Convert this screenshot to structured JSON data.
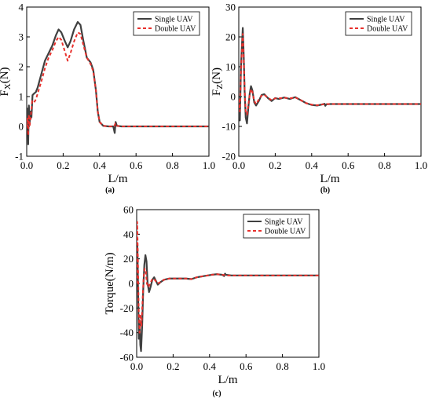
{
  "chart_data": [
    {
      "id": "a",
      "type": "line",
      "panel_label": "(a)",
      "ylabel_main": "F",
      "ylabel_sub": "X",
      "ylabel_unit": "(N)",
      "xlabel": "L/m",
      "xlim": [
        0,
        1.0
      ],
      "ylim": [
        -1,
        4
      ],
      "xticks": [
        0.0,
        0.2,
        0.4,
        0.6,
        0.8,
        1.0
      ],
      "xtick_labels": [
        "0.0",
        "0.2",
        "0.4",
        "0.6",
        "0.8",
        "1.0"
      ],
      "yticks": [
        -1,
        0,
        1,
        2,
        3,
        4
      ],
      "ytick_labels": [
        "-1",
        "0",
        "1",
        "2",
        "3",
        "4"
      ],
      "legend_position": "top-right",
      "series": [
        {
          "name": "Single UAV",
          "color": "#404040",
          "style": "solid",
          "points": [
            [
              0,
              0
            ],
            [
              0.004,
              0.6
            ],
            [
              0.008,
              -0.6
            ],
            [
              0.012,
              0.7
            ],
            [
              0.016,
              0.1
            ],
            [
              0.02,
              0.5
            ],
            [
              0.026,
              0.3
            ],
            [
              0.032,
              1.05
            ],
            [
              0.04,
              1.1
            ],
            [
              0.05,
              1.15
            ],
            [
              0.06,
              1.3
            ],
            [
              0.08,
              1.75
            ],
            [
              0.1,
              2.2
            ],
            [
              0.12,
              2.45
            ],
            [
              0.14,
              2.7
            ],
            [
              0.16,
              3.05
            ],
            [
              0.175,
              3.25
            ],
            [
              0.19,
              3.15
            ],
            [
              0.21,
              2.85
            ],
            [
              0.225,
              2.65
            ],
            [
              0.24,
              2.85
            ],
            [
              0.26,
              3.25
            ],
            [
              0.28,
              3.5
            ],
            [
              0.295,
              3.4
            ],
            [
              0.31,
              2.9
            ],
            [
              0.33,
              2.3
            ],
            [
              0.35,
              2.15
            ],
            [
              0.365,
              1.9
            ],
            [
              0.38,
              1.2
            ],
            [
              0.39,
              0.5
            ],
            [
              0.4,
              0.15
            ],
            [
              0.42,
              0.02
            ],
            [
              0.45,
              0.0
            ],
            [
              0.475,
              0.0
            ],
            [
              0.483,
              -0.22
            ],
            [
              0.488,
              0.15
            ],
            [
              0.495,
              0.02
            ],
            [
              0.52,
              0.0
            ],
            [
              0.6,
              0.0
            ],
            [
              1.0,
              0.0
            ]
          ]
        },
        {
          "name": "Double UAV",
          "color": "#e8302c",
          "style": "dashed",
          "points": [
            [
              0,
              0
            ],
            [
              0.004,
              0.3
            ],
            [
              0.008,
              -0.3
            ],
            [
              0.012,
              0.4
            ],
            [
              0.016,
              0.0
            ],
            [
              0.022,
              0.3
            ],
            [
              0.03,
              0.85
            ],
            [
              0.04,
              0.8
            ],
            [
              0.05,
              0.9
            ],
            [
              0.06,
              1.1
            ],
            [
              0.08,
              1.5
            ],
            [
              0.1,
              1.95
            ],
            [
              0.12,
              2.3
            ],
            [
              0.14,
              2.55
            ],
            [
              0.16,
              2.85
            ],
            [
              0.175,
              3.0
            ],
            [
              0.19,
              2.9
            ],
            [
              0.21,
              2.5
            ],
            [
              0.225,
              2.2
            ],
            [
              0.24,
              2.45
            ],
            [
              0.26,
              2.85
            ],
            [
              0.28,
              3.15
            ],
            [
              0.295,
              3.1
            ],
            [
              0.31,
              2.75
            ],
            [
              0.33,
              2.3
            ],
            [
              0.35,
              2.1
            ],
            [
              0.365,
              1.85
            ],
            [
              0.38,
              1.2
            ],
            [
              0.39,
              0.5
            ],
            [
              0.4,
              0.15
            ],
            [
              0.42,
              0.02
            ],
            [
              0.45,
              0.0
            ],
            [
              0.48,
              0.0
            ],
            [
              0.487,
              0.1
            ],
            [
              0.495,
              0.02
            ],
            [
              0.52,
              0.0
            ],
            [
              0.6,
              0.0
            ],
            [
              1.0,
              0.0
            ]
          ]
        }
      ]
    },
    {
      "id": "b",
      "type": "line",
      "panel_label": "(b)",
      "ylabel_main": "F",
      "ylabel_sub": "Z",
      "ylabel_unit": "(N)",
      "xlabel": "L/m",
      "xlim": [
        0,
        1.0
      ],
      "ylim": [
        -20,
        30
      ],
      "xticks": [
        0.0,
        0.2,
        0.4,
        0.6,
        0.8,
        1.0
      ],
      "xtick_labels": [
        "0.0",
        "0.2",
        "0.4",
        "0.6",
        "0.8",
        "1.0"
      ],
      "yticks": [
        -20,
        -10,
        0,
        10,
        20,
        30
      ],
      "ytick_labels": [
        "-20",
        "-10",
        "0",
        "10",
        "20",
        "30"
      ],
      "legend_position": "top-right",
      "series": [
        {
          "name": "Single UAV",
          "color": "#404040",
          "style": "solid",
          "points": [
            [
              0,
              -2
            ],
            [
              0.006,
              -8
            ],
            [
              0.012,
              10
            ],
            [
              0.018,
              18
            ],
            [
              0.022,
              23
            ],
            [
              0.027,
              14
            ],
            [
              0.032,
              2
            ],
            [
              0.038,
              -7
            ],
            [
              0.045,
              -9
            ],
            [
              0.052,
              -4
            ],
            [
              0.06,
              1
            ],
            [
              0.067,
              3.5
            ],
            [
              0.075,
              2
            ],
            [
              0.085,
              -2
            ],
            [
              0.095,
              -3
            ],
            [
              0.11,
              -1.5
            ],
            [
              0.125,
              0.5
            ],
            [
              0.14,
              0.8
            ],
            [
              0.16,
              -0.5
            ],
            [
              0.18,
              -1.5
            ],
            [
              0.2,
              -0.5
            ],
            [
              0.22,
              -0.8
            ],
            [
              0.25,
              -0.3
            ],
            [
              0.28,
              -0.8
            ],
            [
              0.31,
              -0.2
            ],
            [
              0.34,
              -1.2
            ],
            [
              0.37,
              -2.2
            ],
            [
              0.4,
              -2.8
            ],
            [
              0.43,
              -3.0
            ],
            [
              0.46,
              -2.6
            ],
            [
              0.47,
              -2.4
            ],
            [
              0.475,
              -3.1
            ],
            [
              0.48,
              -2.6
            ],
            [
              0.5,
              -2.5
            ],
            [
              0.6,
              -2.5
            ],
            [
              1.0,
              -2.5
            ]
          ]
        },
        {
          "name": "Double UAV",
          "color": "#e8302c",
          "style": "dashed",
          "points": [
            [
              0,
              -1
            ],
            [
              0.006,
              -5
            ],
            [
              0.012,
              8
            ],
            [
              0.018,
              17
            ],
            [
              0.022,
              21
            ],
            [
              0.027,
              13
            ],
            [
              0.032,
              3
            ],
            [
              0.038,
              -5
            ],
            [
              0.045,
              -6
            ],
            [
              0.052,
              -3
            ],
            [
              0.06,
              0.5
            ],
            [
              0.067,
              2.5
            ],
            [
              0.075,
              1.5
            ],
            [
              0.085,
              -1.5
            ],
            [
              0.095,
              -2.5
            ],
            [
              0.11,
              -1.0
            ],
            [
              0.125,
              0.3
            ],
            [
              0.14,
              0.6
            ],
            [
              0.16,
              -0.4
            ],
            [
              0.18,
              -1.2
            ],
            [
              0.2,
              -0.6
            ],
            [
              0.22,
              -0.6
            ],
            [
              0.25,
              -0.4
            ],
            [
              0.28,
              -0.6
            ],
            [
              0.31,
              -0.3
            ],
            [
              0.34,
              -1.2
            ],
            [
              0.37,
              -2.2
            ],
            [
              0.4,
              -2.7
            ],
            [
              0.43,
              -2.9
            ],
            [
              0.46,
              -2.6
            ],
            [
              0.48,
              -2.5
            ],
            [
              0.5,
              -2.5
            ],
            [
              0.6,
              -2.5
            ],
            [
              1.0,
              -2.5
            ]
          ]
        }
      ]
    },
    {
      "id": "c",
      "type": "line",
      "panel_label": "(c)",
      "ylabel_main": "Torque(N/m)",
      "ylabel_sub": "",
      "ylabel_unit": "",
      "xlabel": "L/m",
      "xlim": [
        0,
        1.0
      ],
      "ylim": [
        -60,
        60
      ],
      "xticks": [
        0.0,
        0.2,
        0.4,
        0.6,
        0.8,
        1.0
      ],
      "xtick_labels": [
        "0.0",
        "0.2",
        "0.4",
        "0.6",
        "0.8",
        "1.0"
      ],
      "yticks": [
        -60,
        -40,
        -20,
        0,
        20,
        40,
        60
      ],
      "ytick_labels": [
        "-60",
        "-40",
        "-20",
        "0",
        "20",
        "40",
        "60"
      ],
      "legend_position": "top-right",
      "series": [
        {
          "name": "Single UAV",
          "color": "#404040",
          "style": "solid",
          "points": [
            [
              0,
              0
            ],
            [
              0.004,
              30
            ],
            [
              0.008,
              -10
            ],
            [
              0.012,
              -45
            ],
            [
              0.016,
              -30
            ],
            [
              0.02,
              -50
            ],
            [
              0.024,
              -55
            ],
            [
              0.03,
              -35
            ],
            [
              0.036,
              -5
            ],
            [
              0.042,
              15
            ],
            [
              0.048,
              23
            ],
            [
              0.054,
              18
            ],
            [
              0.06,
              0
            ],
            [
              0.068,
              -7
            ],
            [
              0.076,
              -3
            ],
            [
              0.086,
              3
            ],
            [
              0.096,
              5
            ],
            [
              0.106,
              2
            ],
            [
              0.116,
              -1
            ],
            [
              0.13,
              1
            ],
            [
              0.15,
              3
            ],
            [
              0.18,
              4
            ],
            [
              0.22,
              4
            ],
            [
              0.27,
              4
            ],
            [
              0.3,
              3.5
            ],
            [
              0.33,
              5
            ],
            [
              0.37,
              6
            ],
            [
              0.41,
              7
            ],
            [
              0.44,
              7.5
            ],
            [
              0.47,
              7
            ],
            [
              0.48,
              6
            ],
            [
              0.485,
              8
            ],
            [
              0.49,
              7
            ],
            [
              0.52,
              6.5
            ],
            [
              0.6,
              6.5
            ],
            [
              1.0,
              6.5
            ]
          ]
        },
        {
          "name": "Double UAV",
          "color": "#e8302c",
          "style": "dashed",
          "points": [
            [
              0,
              0
            ],
            [
              0.003,
              50
            ],
            [
              0.007,
              20
            ],
            [
              0.011,
              -20
            ],
            [
              0.016,
              -40
            ],
            [
              0.021,
              -25
            ],
            [
              0.026,
              -35
            ],
            [
              0.032,
              -15
            ],
            [
              0.038,
              5
            ],
            [
              0.044,
              12
            ],
            [
              0.05,
              10
            ],
            [
              0.056,
              0
            ],
            [
              0.064,
              -3
            ],
            [
              0.074,
              0
            ],
            [
              0.084,
              3
            ],
            [
              0.094,
              4
            ],
            [
              0.104,
              2
            ],
            [
              0.114,
              0
            ],
            [
              0.13,
              1
            ],
            [
              0.15,
              3
            ],
            [
              0.18,
              4
            ],
            [
              0.22,
              4
            ],
            [
              0.27,
              4
            ],
            [
              0.3,
              3.5
            ],
            [
              0.33,
              5
            ],
            [
              0.37,
              6
            ],
            [
              0.41,
              7
            ],
            [
              0.44,
              7.5
            ],
            [
              0.47,
              7
            ],
            [
              0.5,
              6.5
            ],
            [
              0.6,
              6.5
            ],
            [
              1.0,
              6.5
            ]
          ]
        }
      ]
    }
  ]
}
